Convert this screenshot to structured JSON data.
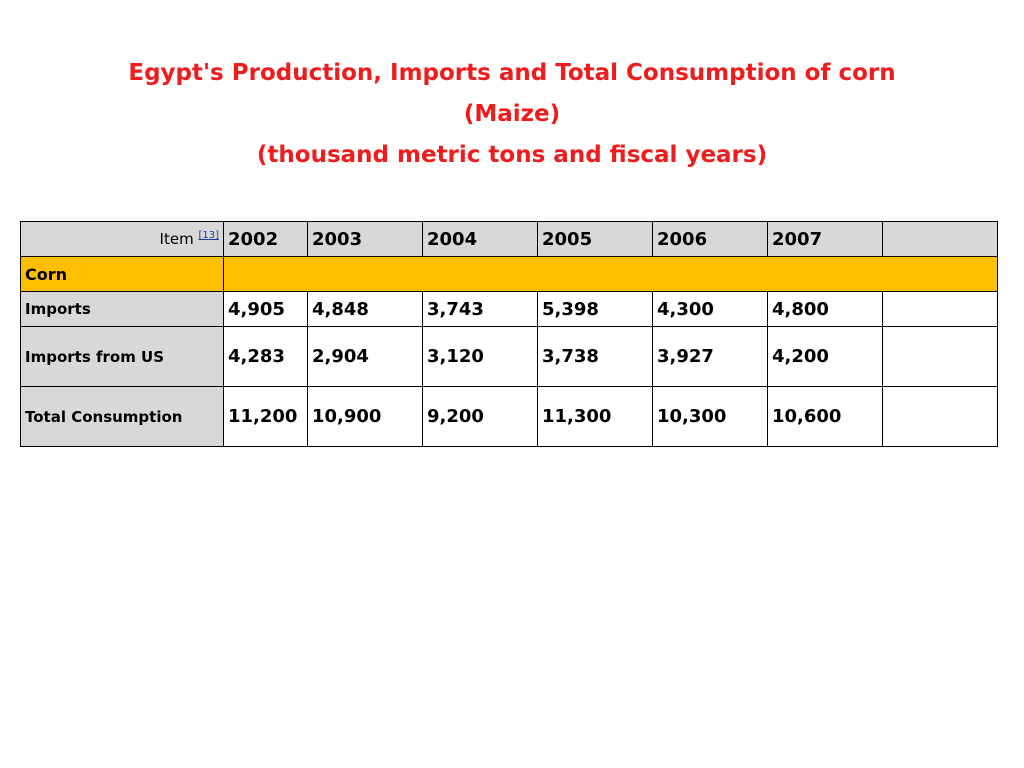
{
  "title": {
    "line1": "Egypt's Production, Imports and Total Consumption of corn",
    "line2": "(Maize)",
    "line3": "(thousand metric tons and fiscal years)"
  },
  "table": {
    "item_label": "Item",
    "item_ref": "[13]",
    "years": [
      "2002",
      "2003",
      "2004",
      "2005",
      "2006",
      "2007"
    ],
    "group_label": "Corn",
    "rows": [
      {
        "label": "Imports",
        "values": [
          "4,905",
          "4,848",
          "3,743",
          "5,398",
          "4,300",
          "4,800"
        ]
      },
      {
        "label": "Imports from US",
        "values": [
          "4,283",
          "2,904",
          "3,120",
          "3,738",
          "3,927",
          "4,200"
        ]
      },
      {
        "label": "Total Consumption",
        "values": [
          "11,200",
          "10,900",
          "9,200",
          "11,300",
          "10,300",
          "10,600"
        ]
      }
    ]
  },
  "colors": {
    "title": "#ee1c1c",
    "header_fill": "#d8d8d8",
    "group_fill": "#fdbf00",
    "link": "#1f3ea0"
  }
}
